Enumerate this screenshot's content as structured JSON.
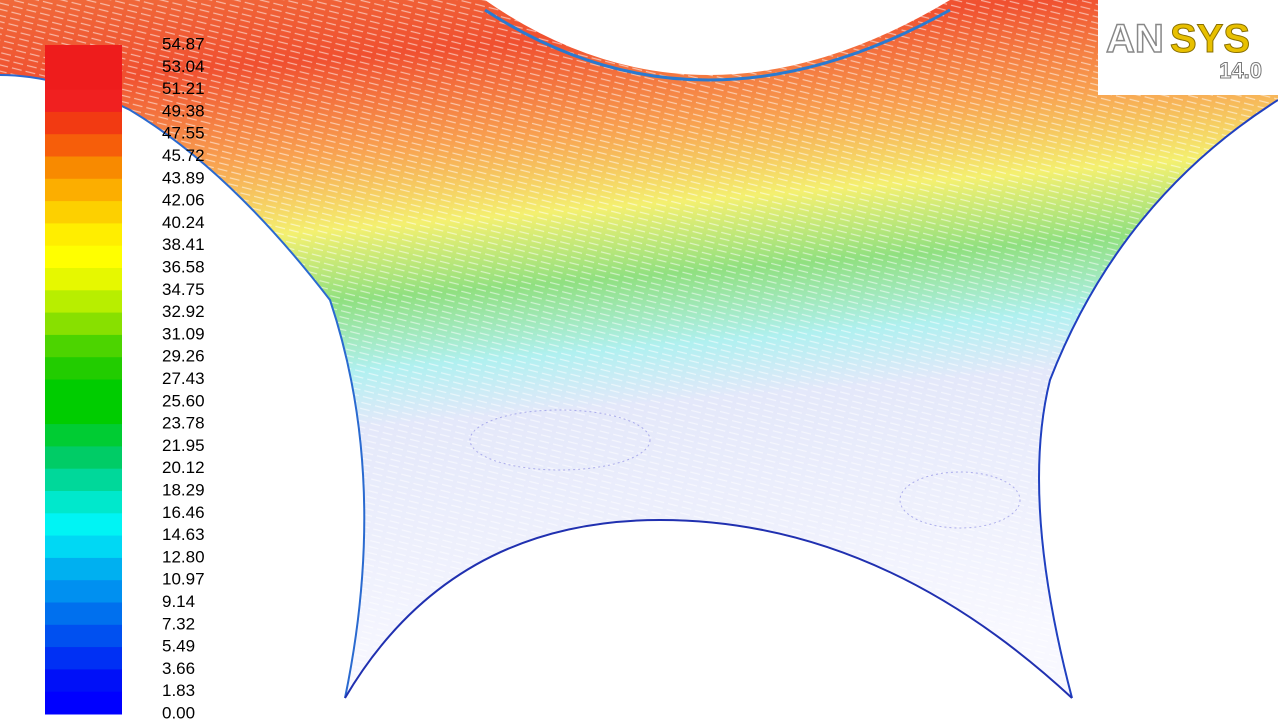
{
  "colorbar": {
    "labels": [
      "54.87",
      "53.04",
      "51.21",
      "49.38",
      "47.55",
      "45.72",
      "43.89",
      "42.06",
      "40.24",
      "38.41",
      "36.58",
      "34.75",
      "32.92",
      "31.09",
      "29.26",
      "27.43",
      "25.60",
      "23.78",
      "21.95",
      "20.12",
      "18.29",
      "16.46",
      "14.63",
      "12.80",
      "10.97",
      "9.14",
      "7.32",
      "5.49",
      "3.66",
      "1.83",
      "0.00"
    ],
    "colors": [
      "#ee1c1c",
      "#ee1c1c",
      "#f02020",
      "#f23a12",
      "#f65e0a",
      "#f88a00",
      "#fcae00",
      "#fdd000",
      "#ffee00",
      "#ffff00",
      "#e6f800",
      "#b8ee00",
      "#88e000",
      "#4cd400",
      "#22cc00",
      "#00cc00",
      "#00cc00",
      "#00cc33",
      "#00cc66",
      "#00d89a",
      "#00e8cc",
      "#00f4f4",
      "#00d8f4",
      "#00b0f0",
      "#0090f0",
      "#0070ee",
      "#0050f0",
      "#0030f4",
      "#0010f8",
      "#0000ff"
    ]
  },
  "logo": {
    "brand_a": "AN",
    "brand_b": "SYS",
    "version": "14.0"
  }
}
